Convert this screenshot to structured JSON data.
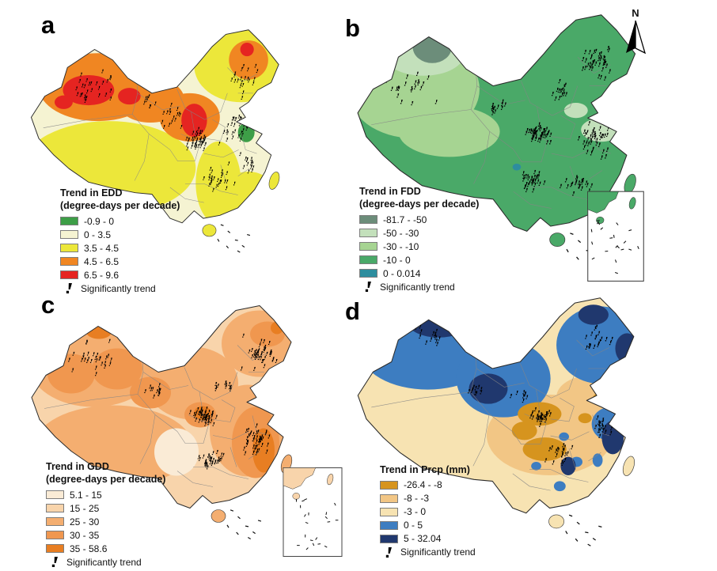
{
  "figure": {
    "north_label": "N",
    "panels": [
      {
        "id": "a",
        "letter": "a",
        "legend": {
          "title_line1": "Trend in EDD",
          "title_line2": "(degree-days per decade)",
          "classes": [
            {
              "label": "-0.9 - 0",
              "color": "#3d9e47"
            },
            {
              "label": "0 - 3.5",
              "color": "#f5f3d2"
            },
            {
              "label": "3.5 - 4.5",
              "color": "#ece73a"
            },
            {
              "label": "4.5 - 6.5",
              "color": "#f08622"
            },
            {
              "label": "6.5 - 9.6",
              "color": "#e52421"
            }
          ],
          "significance_label": "Significantly trend"
        }
      },
      {
        "id": "b",
        "letter": "b",
        "legend": {
          "title_line1": "Trend in FDD",
          "title_line2": "(degree-days per decade)",
          "classes": [
            {
              "label": "-81.7 - -50",
              "color": "#6c8d7a"
            },
            {
              "label": "-50 - -30",
              "color": "#c3e0bb"
            },
            {
              "label": "-30 - -10",
              "color": "#a6d492"
            },
            {
              "label": "-10 - 0",
              "color": "#4aa968"
            },
            {
              "label": "0 - 0.014",
              "color": "#2d8d9e"
            }
          ],
          "significance_label": "Significantly trend"
        }
      },
      {
        "id": "c",
        "letter": "c",
        "legend": {
          "title_line1": "Trend in GDD",
          "title_line2": "(degree-days per decade)",
          "classes": [
            {
              "label": "5.1 - 15",
              "color": "#faebd6"
            },
            {
              "label": "15 - 25",
              "color": "#f8d4ab"
            },
            {
              "label": "25 - 30",
              "color": "#f4ae70"
            },
            {
              "label": "30 - 35",
              "color": "#f0974f"
            },
            {
              "label": "35 - 58.6",
              "color": "#e87e22"
            }
          ],
          "significance_label": "Significantly trend"
        }
      },
      {
        "id": "d",
        "letter": "d",
        "legend": {
          "title_line1": "Trend in Prcp (mm)",
          "title_line2": "",
          "classes": [
            {
              "label": "-26.4 - -8",
              "color": "#d6941e"
            },
            {
              "label": "-8 - -3",
              "color": "#f2c685"
            },
            {
              "label": "-3 - 0",
              "color": "#f7e3b2"
            },
            {
              "label": "0 - 5",
              "color": "#3d7dc1"
            },
            {
              "label": "5 - 32.04",
              "color": "#20386e"
            }
          ],
          "significance_label": "Significantly trend"
        }
      }
    ]
  }
}
